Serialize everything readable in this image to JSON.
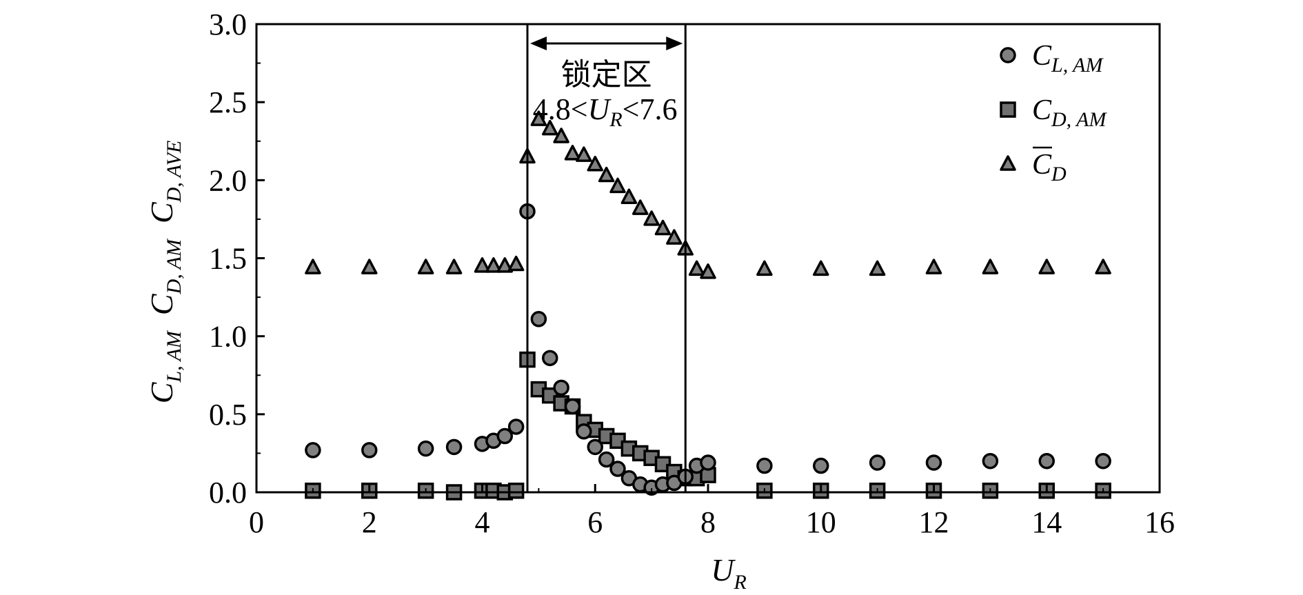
{
  "chart_data": {
    "type": "scatter",
    "xlabel": "U",
    "xlabel_sub": "R",
    "ylabel_parts": [
      {
        "main": "C",
        "sub": "L, AM"
      },
      {
        "main": "C",
        "sub": "D, AM"
      },
      {
        "main": "C",
        "sub": "D, AVE"
      }
    ],
    "xlim": [
      0,
      16
    ],
    "ylim": [
      0,
      3.0
    ],
    "xticks": [
      "0",
      "2",
      "4",
      "6",
      "8",
      "10",
      "12",
      "14",
      "16"
    ],
    "yticks": [
      "0.0",
      "0.5",
      "1.0",
      "1.5",
      "2.0",
      "2.5",
      "3.0"
    ],
    "grid": false,
    "legend_position": "top-right",
    "vlines": [
      4.8,
      7.6
    ],
    "annotation": {
      "label": "锁定区",
      "range_prefix": "4.8<",
      "range_var": "U",
      "range_sub": "R",
      "range_suffix": "<7.6"
    },
    "series": [
      {
        "name": "C",
        "name_sub": "L, AM",
        "marker": "circle",
        "color": "#808080",
        "x": [
          1,
          2,
          3,
          3.5,
          4,
          4.2,
          4.4,
          4.6,
          4.8,
          5.0,
          5.2,
          5.4,
          5.6,
          5.8,
          6.0,
          6.2,
          6.4,
          6.6,
          6.8,
          7.0,
          7.2,
          7.4,
          7.6,
          7.8,
          8.0,
          9,
          10,
          11,
          12,
          13,
          14,
          15
        ],
        "y": [
          0.27,
          0.27,
          0.28,
          0.29,
          0.31,
          0.33,
          0.36,
          0.42,
          1.8,
          1.11,
          0.86,
          0.67,
          0.55,
          0.39,
          0.29,
          0.21,
          0.15,
          0.09,
          0.05,
          0.03,
          0.05,
          0.06,
          0.1,
          0.17,
          0.19,
          0.17,
          0.17,
          0.19,
          0.19,
          0.2,
          0.2,
          0.2
        ]
      },
      {
        "name": "C",
        "name_sub": "D, AM",
        "marker": "square",
        "color": "#707070",
        "x": [
          1,
          2,
          3,
          3.5,
          4,
          4.2,
          4.4,
          4.6,
          4.8,
          5.0,
          5.2,
          5.4,
          5.6,
          5.8,
          6.0,
          6.2,
          6.4,
          6.6,
          6.8,
          7.0,
          7.2,
          7.4,
          7.6,
          7.8,
          8.0,
          9,
          10,
          11,
          12,
          13,
          14,
          15
        ],
        "y": [
          0.01,
          0.01,
          0.01,
          0.0,
          0.01,
          0.01,
          0.0,
          0.01,
          0.85,
          0.66,
          0.62,
          0.57,
          0.55,
          0.45,
          0.4,
          0.36,
          0.33,
          0.28,
          0.25,
          0.22,
          0.18,
          0.13,
          0.09,
          0.09,
          0.11,
          0.01,
          0.01,
          0.01,
          0.01,
          0.01,
          0.01,
          0.01
        ]
      },
      {
        "name": "C",
        "name_sub": "D",
        "name_overline": true,
        "marker": "triangle",
        "color": "#808080",
        "x": [
          1,
          2,
          3,
          3.5,
          4,
          4.2,
          4.4,
          4.6,
          4.8,
          5.0,
          5.2,
          5.4,
          5.6,
          5.8,
          6.0,
          6.2,
          6.4,
          6.6,
          6.8,
          7.0,
          7.2,
          7.4,
          7.6,
          7.8,
          8.0,
          9,
          10,
          11,
          12,
          13,
          14,
          15
        ],
        "y": [
          1.44,
          1.44,
          1.44,
          1.44,
          1.45,
          1.45,
          1.45,
          1.46,
          2.15,
          2.39,
          2.33,
          2.28,
          2.17,
          2.16,
          2.1,
          2.03,
          1.96,
          1.89,
          1.82,
          1.75,
          1.69,
          1.63,
          1.56,
          1.43,
          1.41,
          1.43,
          1.43,
          1.43,
          1.44,
          1.44,
          1.44,
          1.44
        ]
      }
    ]
  }
}
